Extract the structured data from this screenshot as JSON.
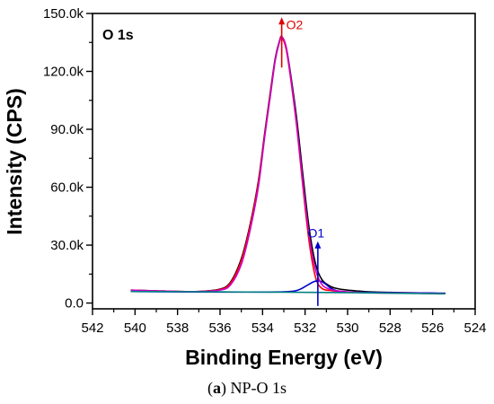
{
  "chart_data": {
    "type": "line",
    "panel_label": "O 1s",
    "xlabel": "Binding Energy (eV)",
    "ylabel": "Intensity (CPS)",
    "xlim": [
      542,
      524
    ],
    "ylim": [
      -3000,
      150000
    ],
    "x_reversed": true,
    "grid": false,
    "x_ticks": [
      542,
      540,
      538,
      536,
      534,
      532,
      530,
      528,
      526,
      524
    ],
    "x_tick_labels": [
      "542",
      "540",
      "538",
      "536",
      "534",
      "532",
      "530",
      "528",
      "526",
      "524"
    ],
    "y_ticks": [
      0,
      30000,
      60000,
      90000,
      120000,
      150000
    ],
    "y_tick_labels": [
      "0.0",
      "30.0k",
      "60.0k",
      "90.0k",
      "120.0k",
      "150.0k"
    ],
    "series": [
      {
        "color": "#000000",
        "x": [
          540.2,
          539,
          538,
          537,
          536,
          535.5,
          535,
          534.6,
          534.2,
          533.9,
          533.6,
          533.4,
          533.2,
          533.1,
          532.9,
          532.7,
          532.4,
          532.1,
          531.8,
          531.5,
          531.2,
          530.8,
          530.4,
          530,
          529.5,
          529,
          528,
          527,
          526,
          525.4
        ],
        "y": [
          6700,
          6300,
          6000,
          6000,
          7200,
          11000,
          23000,
          40000,
          63000,
          88000,
          112000,
          127000,
          136000,
          138000,
          133000,
          120000,
          96000,
          66000,
          38000,
          20000,
          12000,
          8600,
          7300,
          6700,
          6200,
          5800,
          5500,
          5300,
          5100,
          4900
        ]
      },
      {
        "color": "#ff0000",
        "x": [
          540.2,
          539,
          538,
          537,
          536,
          535.5,
          535,
          534.6,
          534.2,
          533.9,
          533.6,
          533.4,
          533.2,
          533.1,
          532.9,
          532.7,
          532.4,
          532.1,
          531.8,
          531.5,
          531.2,
          530.8,
          530.4,
          530,
          529.5,
          529,
          528,
          527,
          526,
          525.4
        ],
        "y": [
          6700,
          6300,
          6000,
          6000,
          7000,
          10500,
          22000,
          39000,
          62000,
          87000,
          111000,
          126000,
          135500,
          137500,
          132000,
          118000,
          92000,
          60000,
          31000,
          13000,
          7500,
          6500,
          6000,
          5700,
          5500,
          5300,
          5200,
          5100,
          5000,
          4900
        ]
      },
      {
        "color": "#0000cc",
        "x": [
          540.2,
          538,
          536,
          534,
          533,
          532.5,
          532.2,
          531.9,
          531.6,
          531.4,
          531.2,
          531,
          530.8,
          530.5,
          530.2,
          529.5,
          528,
          526,
          525.4
        ],
        "y": [
          6000,
          5800,
          5700,
          5700,
          5800,
          6200,
          7300,
          9200,
          11000,
          11500,
          11000,
          9500,
          7800,
          6300,
          5800,
          5600,
          5400,
          5200,
          5100
        ]
      },
      {
        "color": "#cc00cc",
        "x": [
          540.2,
          539,
          538,
          537,
          536,
          535.5,
          535,
          534.6,
          534.2,
          533.9,
          533.6,
          533.4,
          533.2,
          533.1,
          532.9,
          532.7,
          532.4,
          532.1,
          531.8,
          531.5,
          531.2,
          530.8,
          530.4,
          530,
          529.5,
          529,
          528,
          527,
          526,
          525.4
        ],
        "y": [
          6700,
          6300,
          6000,
          6000,
          6700,
          9500,
          20000,
          37000,
          60000,
          86000,
          110000,
          126000,
          135500,
          138000,
          133000,
          119000,
          93000,
          62000,
          34000,
          17000,
          9500,
          7000,
          6200,
          5800,
          5500,
          5300,
          5200,
          5100,
          5000,
          4900
        ]
      },
      {
        "color": "#008080",
        "x": [
          540.2,
          536,
          533,
          530,
          527,
          525.4
        ],
        "y": [
          6000,
          5800,
          5600,
          5400,
          5000,
          4800
        ]
      }
    ],
    "annotations": [
      {
        "text": "O2",
        "color": "#e00000",
        "x": 533.1,
        "y_from": 122000,
        "y_to": 148000
      },
      {
        "text": "O1",
        "color": "#0000cc",
        "x": 531.4,
        "y_from": -1500,
        "y_to": 32000
      }
    ]
  },
  "caption": {
    "letter": "a",
    "text": " NP-O 1s"
  }
}
